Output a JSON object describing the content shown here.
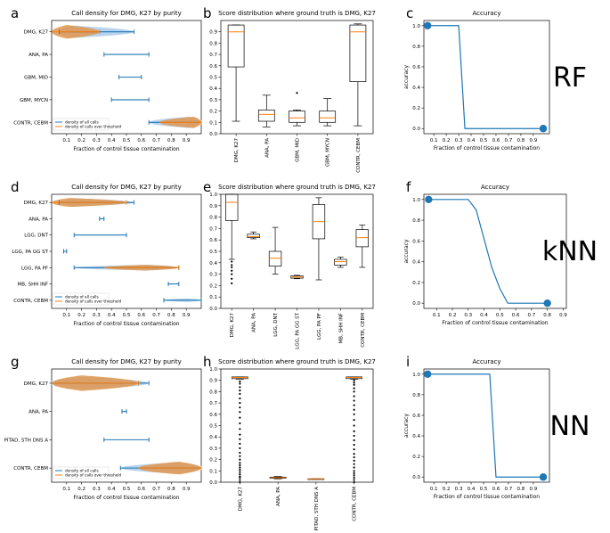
{
  "chart_data": [
    {
      "id": "a",
      "panel_label": "a",
      "type": "violin",
      "title": "Call density for DMG, K27 by purity",
      "xlabel": "Fraction of control tissue contamination",
      "xticks": [
        "0.1",
        "0.2",
        "0.3",
        "0.4",
        "0.5",
        "0.6",
        "0.7",
        "0.8",
        "0.9"
      ],
      "xlim": [
        0,
        1
      ],
      "categories": [
        "DMG, K27",
        "ANA, PA",
        "GBM, MID",
        "GBM, MYCN",
        "CONTR, CEBM"
      ],
      "legend": [
        "density of all calls",
        "density of calls over threshold"
      ],
      "all_calls": [
        {
          "min": 0.05,
          "max": 0.55,
          "width": 0.55,
          "peak": 0.12
        },
        {
          "min": 0.35,
          "max": 0.65,
          "width": 0,
          "peak": 0.5
        },
        {
          "min": 0.45,
          "max": 0.6,
          "width": 0,
          "peak": 0.5
        },
        {
          "min": 0.4,
          "max": 0.65,
          "width": 0,
          "peak": 0.5
        },
        {
          "min": 0.65,
          "max": 1.0,
          "width": 0.5,
          "peak": 0.92
        }
      ],
      "over_threshold": [
        {
          "min": 0.0,
          "max": 0.32,
          "width": 0.6,
          "peak": 0.1
        },
        null,
        null,
        null,
        {
          "min": 0.72,
          "max": 1.0,
          "width": 0.5,
          "peak": 0.95
        }
      ]
    },
    {
      "id": "b",
      "panel_label": "b",
      "type": "box",
      "title": "Score distribution where ground truth is DMG, K27",
      "yticks": [
        "0.0",
        "0.1",
        "0.2",
        "0.3",
        "0.4",
        "0.5",
        "0.6",
        "0.7",
        "0.8",
        "0.9"
      ],
      "ylim": [
        0,
        1
      ],
      "categories": [
        "DMG, K27",
        "ANA, PA",
        "GBM, MID",
        "GBM, MYCN",
        "CONTR, CEBM"
      ],
      "boxes": [
        {
          "whislo": 0.11,
          "q1": 0.59,
          "med": 0.9,
          "q3": 0.96,
          "whishi": 0.96,
          "fliers": []
        },
        {
          "whislo": 0.06,
          "q1": 0.11,
          "med": 0.17,
          "q3": 0.21,
          "whishi": 0.34,
          "fliers": []
        },
        {
          "whislo": 0.07,
          "q1": 0.1,
          "med": 0.14,
          "q3": 0.2,
          "whishi": 0.21,
          "fliers": [
            0.36
          ]
        },
        {
          "whislo": 0.07,
          "q1": 0.1,
          "med": 0.14,
          "q3": 0.2,
          "whishi": 0.31,
          "fliers": []
        },
        {
          "whislo": 0.07,
          "q1": 0.46,
          "med": 0.9,
          "q3": 0.96,
          "whishi": 0.97,
          "fliers": []
        }
      ]
    },
    {
      "id": "c",
      "panel_label": "c",
      "type": "line",
      "title": "Accuracy",
      "xlabel": "Fraction of control tissue contamination",
      "ylabel": "accuracy",
      "xticks": [
        "0.1",
        "0.2",
        "0.3",
        "0.4",
        "0.5",
        "0.6",
        "0.7",
        "0.8",
        "0.9"
      ],
      "yticks": [
        "0.0",
        "0.2",
        "0.4",
        "0.6",
        "0.8",
        "1.0"
      ],
      "xlim": [
        0.02,
        1.03
      ],
      "ylim": [
        -0.05,
        1.05
      ],
      "x": [
        0.05,
        0.3,
        0.35,
        0.98
      ],
      "y": [
        1.0,
        1.0,
        0.0,
        0.0
      ],
      "markers": [
        [
          0.05,
          1.0
        ],
        [
          0.98,
          0.0
        ]
      ]
    },
    {
      "id": "d",
      "panel_label": "d",
      "type": "violin",
      "title": "Call density for DMG, K27 by purity",
      "xlabel": "Fraction of control tissue contamination",
      "xticks": [
        "0.1",
        "0.2",
        "0.3",
        "0.4",
        "0.5",
        "0.6",
        "0.7",
        "0.8",
        "0.9"
      ],
      "xlim": [
        0,
        1
      ],
      "categories": [
        "DMG, K27",
        "ANA, PA",
        "LGG, DNT",
        "LGG, PA GG ST",
        "LGG, PA PF",
        "MB, SHH INF",
        "CONTR, CEBM"
      ],
      "legend": [
        "density of all calls",
        "density of calls over threshold"
      ],
      "all_calls": [
        {
          "min": 0.05,
          "max": 0.55,
          "width": 0.5,
          "peak": 0.15
        },
        {
          "min": 0.32,
          "max": 0.35,
          "width": 0,
          "peak": 0.33
        },
        {
          "min": 0.15,
          "max": 0.5,
          "width": 0,
          "peak": 0.3
        },
        {
          "min": 0.08,
          "max": 0.1,
          "width": 0,
          "peak": 0.09
        },
        {
          "min": 0.15,
          "max": 0.85,
          "width": 0.35,
          "peak": 0.65
        },
        {
          "min": 0.78,
          "max": 0.85,
          "width": 0,
          "peak": 0.8
        },
        {
          "min": 0.75,
          "max": 1.0,
          "width": 0.22,
          "peak": 0.9
        }
      ],
      "over_threshold": [
        {
          "min": 0.0,
          "max": 0.5,
          "width": 0.55,
          "peak": 0.12
        },
        null,
        null,
        null,
        {
          "min": 0.35,
          "max": 0.85,
          "width": 0.35,
          "peak": 0.62
        },
        null,
        null
      ]
    },
    {
      "id": "e",
      "panel_label": "e",
      "type": "box",
      "title": "Score distribution where ground truth is DMG, K27",
      "yticks": [
        "0.0",
        "0.1",
        "0.2",
        "0.3",
        "0.4",
        "0.5",
        "0.6",
        "0.7",
        "0.8",
        "0.9",
        "1.0"
      ],
      "ylim": [
        0,
        1
      ],
      "categories": [
        "DMG, K27",
        "ANA, PA",
        "LGG, DNT",
        "LGG, PA GG ST",
        "LGG, PA PF",
        "MB, SHH INF",
        "CONTR, CEBM"
      ],
      "boxes": [
        {
          "whislo": 0.43,
          "q1": 0.77,
          "med": 0.93,
          "q3": 1.0,
          "whishi": 1.0,
          "fliers": [
            0.22,
            0.26,
            0.3,
            0.33,
            0.36,
            0.38,
            0.41
          ]
        },
        {
          "whislo": 0.61,
          "q1": 0.62,
          "med": 0.63,
          "q3": 0.65,
          "whishi": 0.67,
          "fliers": []
        },
        {
          "whislo": 0.3,
          "q1": 0.37,
          "med": 0.44,
          "q3": 0.5,
          "whishi": 0.71,
          "fliers": []
        },
        {
          "whislo": 0.26,
          "q1": 0.265,
          "med": 0.275,
          "q3": 0.285,
          "whishi": 0.29,
          "fliers": []
        },
        {
          "whislo": 0.25,
          "q1": 0.61,
          "med": 0.76,
          "q3": 0.91,
          "whishi": 0.97,
          "fliers": []
        },
        {
          "whislo": 0.36,
          "q1": 0.38,
          "med": 0.41,
          "q3": 0.43,
          "whishi": 0.45,
          "fliers": []
        },
        {
          "whislo": 0.36,
          "q1": 0.54,
          "med": 0.62,
          "q3": 0.69,
          "whishi": 0.73,
          "fliers": []
        }
      ]
    },
    {
      "id": "f",
      "panel_label": "f",
      "type": "line",
      "title": "Accuracy",
      "xlabel": "Fraction of control tissue contamination",
      "ylabel": "accuracy",
      "xticks": [
        "0.1",
        "0.2",
        "0.3",
        "0.4",
        "0.5",
        "0.6",
        "0.7",
        "0.8",
        "0.9"
      ],
      "yticks": [
        "0.0",
        "0.2",
        "0.4",
        "0.6",
        "0.8",
        "1.0"
      ],
      "xlim": [
        0.02,
        0.92
      ],
      "ylim": [
        -0.05,
        1.05
      ],
      "x": [
        0.05,
        0.1,
        0.15,
        0.2,
        0.25,
        0.3,
        0.35,
        0.4,
        0.45,
        0.5,
        0.55,
        0.6,
        0.65,
        0.7,
        0.75,
        0.8
      ],
      "y": [
        1.0,
        1.0,
        1.0,
        1.0,
        1.0,
        1.0,
        0.9,
        0.62,
        0.34,
        0.14,
        0.0,
        0.0,
        0.0,
        0.0,
        0.0,
        0.0
      ],
      "markers": [
        [
          0.05,
          1.0
        ],
        [
          0.8,
          0.0
        ]
      ]
    },
    {
      "id": "g",
      "panel_label": "g",
      "type": "violin",
      "title": "Call density for DMG, K27 by purity",
      "xlabel": "Fraction of control tissue contamination",
      "xticks": [
        "0.1",
        "0.2",
        "0.3",
        "0.4",
        "0.5",
        "0.6",
        "0.7",
        "0.8",
        "0.9"
      ],
      "xlim": [
        0,
        1
      ],
      "categories": [
        "DMG, K27",
        "ANA, PA",
        "PITAD, STH DNS A",
        "CONTR, CEBM"
      ],
      "legend": [
        "density of all calls",
        "density of calls over threshold"
      ],
      "all_calls": [
        {
          "min": 0.0,
          "max": 0.65,
          "width": 0.45,
          "peak": 0.2
        },
        {
          "min": 0.47,
          "max": 0.5,
          "width": 0,
          "peak": 0.48
        },
        {
          "min": 0.35,
          "max": 0.65,
          "width": 0,
          "peak": 0.5
        },
        {
          "min": 0.46,
          "max": 1.0,
          "width": 0.4,
          "peak": 0.85
        }
      ],
      "over_threshold": [
        {
          "min": 0.0,
          "max": 0.58,
          "width": 0.55,
          "peak": 0.2
        },
        null,
        null,
        {
          "min": 0.58,
          "max": 1.0,
          "width": 0.45,
          "peak": 0.85
        }
      ]
    },
    {
      "id": "h",
      "panel_label": "h",
      "type": "box",
      "title": "Score distribution where ground truth is DMG, K27",
      "yticks": [
        "0.0",
        "0.1",
        "0.2",
        "0.3",
        "0.4",
        "0.5",
        "0.6",
        "0.7",
        "0.8",
        "0.9",
        "1.0"
      ],
      "ylim": [
        0,
        1
      ],
      "categories": [
        "DMG, K27",
        "ANA, PA",
        "PITAD, STH DNS A",
        "CONTR, CEBM"
      ],
      "boxes": [
        {
          "whislo": 0.91,
          "q1": 0.915,
          "med": 0.925,
          "q3": 0.93,
          "whishi": 0.93,
          "fliers": [
            0.0,
            0.02,
            0.04,
            0.05,
            0.07,
            0.09,
            0.11,
            0.13,
            0.15,
            0.17,
            0.2,
            0.23,
            0.26,
            0.3,
            0.34,
            0.38,
            0.42,
            0.47,
            0.52,
            0.57,
            0.62,
            0.66,
            0.7,
            0.74,
            0.78,
            0.81,
            0.84,
            0.87,
            0.89
          ]
        },
        {
          "whislo": 0.03,
          "q1": 0.035,
          "med": 0.04,
          "q3": 0.045,
          "whishi": 0.05,
          "fliers": []
        },
        {
          "whislo": 0.03,
          "q1": 0.03,
          "med": 0.03,
          "q3": 0.03,
          "whishi": 0.03,
          "fliers": []
        },
        {
          "whislo": 0.91,
          "q1": 0.915,
          "med": 0.925,
          "q3": 0.93,
          "whishi": 0.93,
          "fliers": [
            0.0,
            0.02,
            0.04,
            0.06,
            0.08,
            0.1,
            0.13,
            0.16,
            0.19,
            0.22,
            0.25,
            0.29,
            0.33,
            0.37,
            0.41,
            0.45,
            0.5,
            0.55,
            0.6,
            0.64,
            0.68,
            0.72,
            0.76,
            0.8,
            0.83,
            0.86,
            0.88,
            0.9
          ]
        }
      ]
    },
    {
      "id": "i",
      "panel_label": "i",
      "type": "line",
      "title": "Accuracy",
      "xlabel": "Fraction of control tissue contamination",
      "ylabel": "accuracy",
      "xticks": [
        "0.1",
        "0.2",
        "0.3",
        "0.4",
        "0.5",
        "0.6",
        "0.7",
        "0.8",
        "0.9"
      ],
      "yticks": [
        "0.0",
        "0.2",
        "0.4",
        "0.6",
        "0.8",
        "1.0"
      ],
      "xlim": [
        0.02,
        1.03
      ],
      "ylim": [
        -0.05,
        1.05
      ],
      "x": [
        0.05,
        0.55,
        0.6,
        0.98
      ],
      "y": [
        1.0,
        1.0,
        0.0,
        0.0
      ],
      "markers": [
        [
          0.05,
          1.0
        ],
        [
          0.98,
          0.0
        ]
      ]
    }
  ],
  "row_labels": [
    "RF",
    "kNN",
    "NN"
  ],
  "colors": {
    "blue": "#1f77b4",
    "orange": "#ff7f0e",
    "violin_blue": "#9fc5e8",
    "violin_orange": "#e0964f",
    "box_median": "#ff7f0e"
  }
}
